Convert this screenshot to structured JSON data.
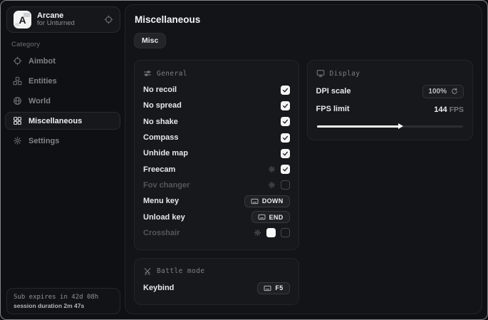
{
  "colors": {
    "window_bg": "#0f1013",
    "panel_bg": "#17181b",
    "checkbox_checked": "#f4f4f5",
    "text_primary": "#e8e9eb",
    "text_muted": "#808386",
    "slider_fill": "#f2f2f3"
  },
  "app": {
    "name": "Arcane",
    "subtitle": "for Unturned",
    "logo_letter": "A",
    "header_icon": "target-icon"
  },
  "sidebar": {
    "category_label": "Category",
    "items": [
      {
        "label": "Aimbot",
        "icon": "crosshair-icon",
        "active": false
      },
      {
        "label": "Entities",
        "icon": "entities-icon",
        "active": false
      },
      {
        "label": "World",
        "icon": "globe-icon",
        "active": false
      },
      {
        "label": "Miscellaneous",
        "icon": "grid-icon",
        "active": true
      },
      {
        "label": "Settings",
        "icon": "gear-icon",
        "active": false
      }
    ],
    "subscription": {
      "expires_text": "Sub expires in 42d 08h",
      "session_text": "session duration 2m 47s"
    }
  },
  "main": {
    "title": "Miscellaneous",
    "tab": "Misc",
    "general": {
      "title": "General",
      "icon": "sliders-icon",
      "rows": {
        "no_recoil": "No recoil",
        "no_spread": "No spread",
        "no_shake": "No shake",
        "compass": "Compass",
        "unhide_map": "Unhide map",
        "freecam": "Freecam",
        "fov_changer": "Fov changer",
        "menu_key": "Menu key",
        "unload_key": "Unload key",
        "crosshair": "Crosshair"
      },
      "menu_key_value": "DOWN",
      "unload_key_value": "END"
    },
    "battle": {
      "title": "Battle mode",
      "icon": "swords-icon",
      "keybind_label": "Keybind",
      "keybind_value": "F5"
    },
    "display": {
      "title": "Display",
      "icon": "monitor-icon",
      "dpi_label": "DPI scale",
      "dpi_value": "100%",
      "fps_label": "FPS limit",
      "fps_value": "144",
      "fps_unit": "FPS",
      "fps_slider_percent": 57
    }
  },
  "checkboxes": {
    "no_recoil": true,
    "no_spread": true,
    "no_shake": true,
    "compass": true,
    "unhide_map": true,
    "freecam": true,
    "fov_changer": false,
    "crosshair": false
  }
}
